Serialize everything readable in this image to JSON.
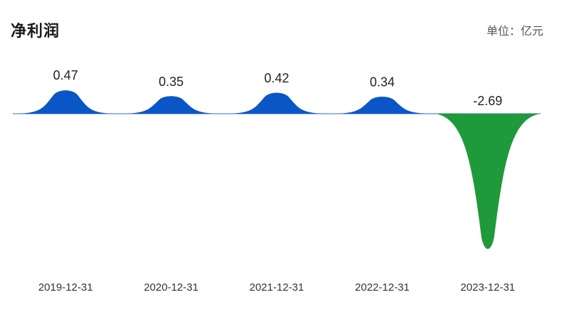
{
  "header": {
    "title": "净利润",
    "unit": "单位：亿元"
  },
  "chart_data": {
    "type": "area",
    "title": "净利润",
    "unit": "亿元",
    "categories": [
      "2019-12-31",
      "2020-12-31",
      "2021-12-31",
      "2022-12-31",
      "2023-12-31"
    ],
    "values": [
      0.47,
      0.35,
      0.42,
      0.34,
      -2.69
    ],
    "value_labels": [
      "0.47",
      "0.35",
      "0.42",
      "0.34",
      "-2.69"
    ],
    "colors": {
      "positive": "#0b56c6",
      "negative": "#1e9a3a"
    },
    "grid": false,
    "legend": "none"
  }
}
